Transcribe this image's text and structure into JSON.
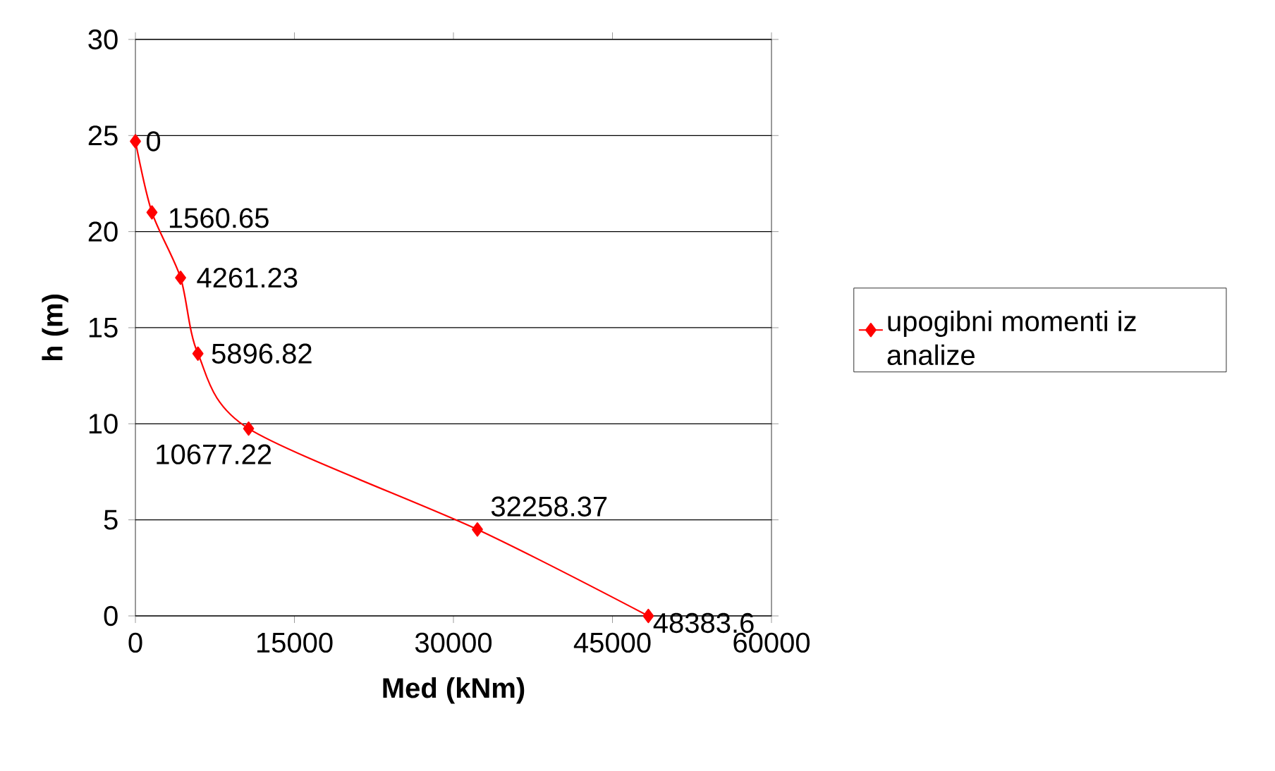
{
  "chart_data": {
    "type": "line",
    "xlabel": "Med (kNm)",
    "ylabel": "h (m)",
    "series": [
      {
        "name": "upogibni momenti iz analize",
        "color": "#ff0000",
        "x": [
          0,
          1560.65,
          4261.23,
          5896.82,
          10677.22,
          32258.37,
          48383.6
        ],
        "values": [
          24.7,
          21.0,
          17.6,
          13.65,
          9.75,
          4.5,
          0
        ]
      }
    ],
    "xlim": [
      0,
      60000
    ],
    "xticks": [
      0,
      15000,
      30000,
      45000,
      60000
    ],
    "ylim": [
      0,
      30
    ],
    "yticks": [
      0,
      5,
      10,
      15,
      20,
      25,
      30
    ],
    "grid": "y",
    "legend": "right",
    "marker": "diamond",
    "line_style": "solid",
    "annotations": [
      {
        "text": "0",
        "x": 0,
        "y": 24.7
      },
      {
        "text": "1560.65",
        "x": 1560.65,
        "y": 21.0
      },
      {
        "text": "4261.23",
        "x": 4261.23,
        "y": 17.6
      },
      {
        "text": "5896.82",
        "x": 5896.82,
        "y": 13.65
      },
      {
        "text": "10677.22",
        "x": 10677.22,
        "y": 9.75
      },
      {
        "text": "32258.37",
        "x": 32258.37,
        "y": 4.5
      },
      {
        "text": "48383.6",
        "x": 48383.6,
        "y": 0
      }
    ]
  }
}
